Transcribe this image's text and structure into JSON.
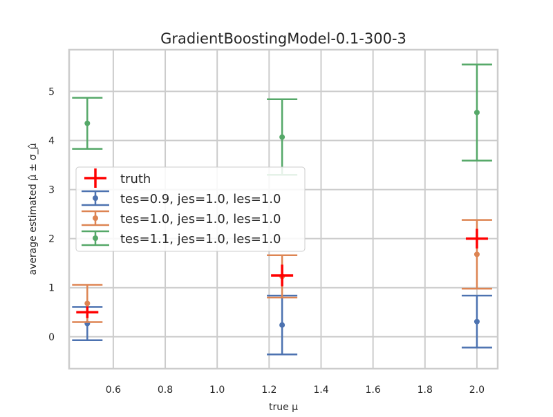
{
  "chart_data": {
    "type": "errorbar",
    "title": "GradientBoostingModel-0.1-300-3",
    "xlabel": "true μ",
    "ylabel": "average estimated μ̂ ± σ_μ̂",
    "xlim": [
      0.43,
      2.08
    ],
    "ylim": [
      -0.65,
      5.85
    ],
    "xticks": [
      0.6,
      0.8,
      1.0,
      1.2,
      1.4,
      1.6,
      1.8,
      2.0
    ],
    "xtick_labels": [
      "0.6",
      "0.8",
      "1.0",
      "1.2",
      "1.4",
      "1.6",
      "1.8",
      "2.0"
    ],
    "yticks": [
      0,
      1,
      2,
      3,
      4,
      5
    ],
    "ytick_labels": [
      "0",
      "1",
      "2",
      "3",
      "4",
      "5"
    ],
    "grid": true,
    "legend_position": "center-left",
    "truth": {
      "label": "truth",
      "color": "#ff0000",
      "x": [
        0.5,
        1.25,
        2.0
      ],
      "y": [
        0.5,
        1.25,
        2.0
      ],
      "yerr": [
        0.12,
        0.22,
        0.2
      ]
    },
    "series": [
      {
        "name": "tes=0.9, jes=1.0, les=1.0",
        "color": "#4c72b0",
        "x": [
          0.5,
          1.25,
          2.0
        ],
        "y": [
          0.27,
          0.24,
          0.31
        ],
        "err": [
          0.34,
          0.6,
          0.53
        ]
      },
      {
        "name": "tes=1.0, jes=1.0, les=1.0",
        "color": "#dd8452",
        "x": [
          0.5,
          1.25,
          2.0
        ],
        "y": [
          0.68,
          1.23,
          1.68
        ],
        "err": [
          0.38,
          0.43,
          0.7
        ]
      },
      {
        "name": "tes=1.1, jes=1.0, les=1.0",
        "color": "#55a868",
        "x": [
          0.5,
          1.25,
          2.0
        ],
        "y": [
          4.35,
          4.07,
          4.57
        ],
        "err": [
          0.52,
          0.77,
          0.98
        ]
      }
    ]
  }
}
